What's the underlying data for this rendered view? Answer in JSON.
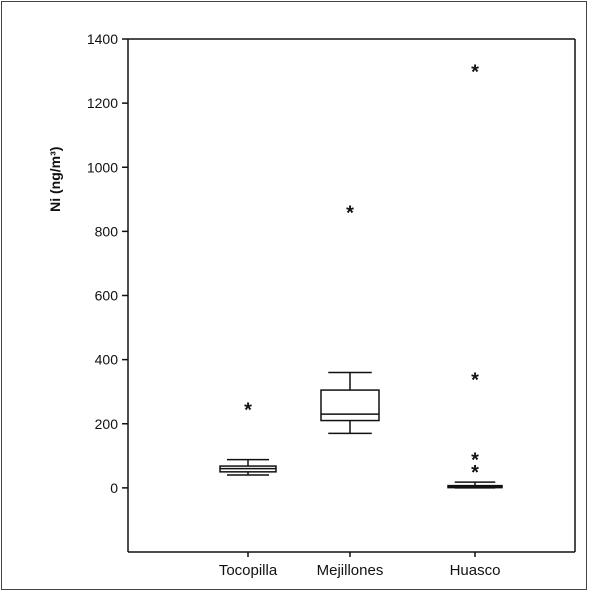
{
  "chart_data": {
    "type": "boxplot",
    "title": "",
    "ylabel": "Ni (ng/m³)",
    "xlabel": "",
    "ylim": [
      -200,
      1400
    ],
    "yticks": [
      0,
      200,
      400,
      600,
      800,
      1000,
      1200,
      1400
    ],
    "categories": [
      "Tocopilla",
      "Mejillones",
      "Huasco"
    ],
    "boxes": [
      {
        "name": "Tocopilla",
        "whisker_low": 40,
        "q1": 50,
        "median": 60,
        "q3": 68,
        "whisker_high": 88,
        "outliers": [
          250
        ]
      },
      {
        "name": "Mejillones",
        "whisker_low": 170,
        "q1": 210,
        "median": 230,
        "q3": 305,
        "whisker_high": 360,
        "outliers": [
          865
        ]
      },
      {
        "name": "Huasco",
        "whisker_low": 0,
        "q1": 2,
        "median": 4,
        "q3": 7,
        "whisker_high": 18,
        "outliers": [
          55,
          95,
          345,
          1305
        ]
      }
    ],
    "outlier_marker": "*",
    "grid": false
  }
}
